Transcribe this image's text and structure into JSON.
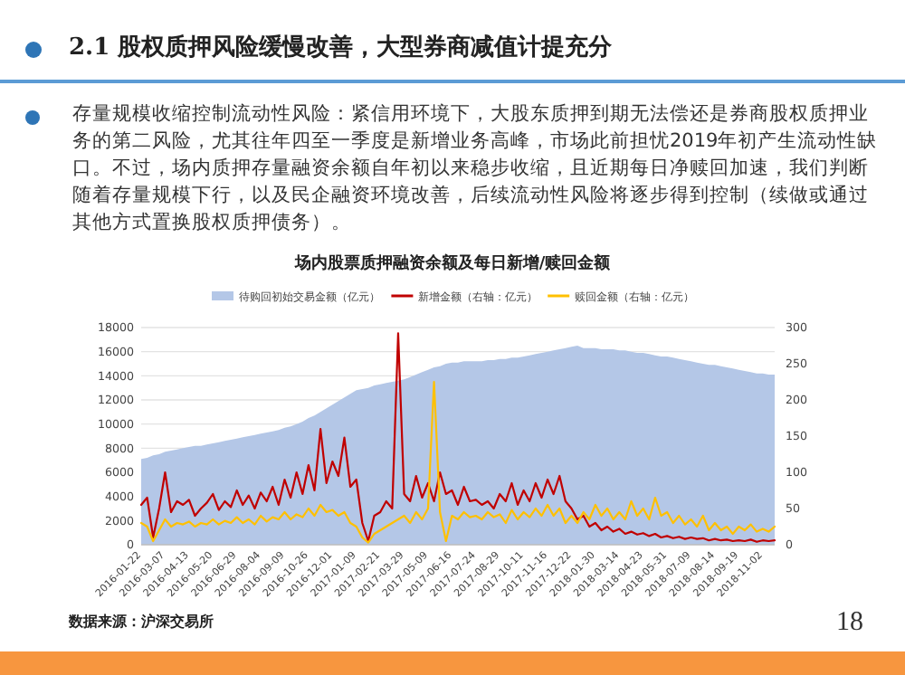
{
  "chart_data": {
    "type": "line",
    "title": "场内股票质押融资余额及每日新增/赎回金额",
    "annotations": [
      "2.1 股权质押风险缓慢改善，大型券商减值计提充分",
      "存量规模收缩控制流动性风险：紧信用环境下，大股东质押到期无法偿还是券商股权质押业务的第二风险，尤其往年四至一季度是新增业务高峰，市场此前担忧2019年初产生流动性缺口。不过，场内质押存量融资余额自年初以来稳步收缩，且近期每日净赎回加速，我们判断随着存量规模下行，以及民企融资环境改善，后续流动性风险将逐步得到控制（续做或通过其他方式置换股权质押债务）。",
      "数据来源：沪深交易所",
      "18"
    ],
    "categories": [
      "2016-01-22",
      null,
      null,
      null,
      "2016-03-07",
      null,
      null,
      null,
      "2016-04-13",
      null,
      null,
      null,
      "2016-05-20",
      null,
      null,
      null,
      "2016-06-29",
      null,
      null,
      null,
      "2016-08-04",
      null,
      null,
      null,
      "2016-09-09",
      null,
      null,
      null,
      "2016-10-26",
      null,
      null,
      null,
      "2016-12-01",
      null,
      null,
      null,
      "2017-01-09",
      null,
      null,
      null,
      "2017-02-21",
      null,
      null,
      null,
      "2017-03-29",
      null,
      null,
      null,
      "2017-05-09",
      null,
      null,
      null,
      "2017-06-16",
      null,
      null,
      null,
      "2017-07-24",
      null,
      null,
      null,
      "2017-08-29",
      null,
      null,
      null,
      "2017-10-11",
      null,
      null,
      null,
      "2017-11-16",
      null,
      null,
      null,
      "2017-12-22",
      null,
      null,
      null,
      "2018-01-30",
      null,
      null,
      null,
      "2018-03-14",
      null,
      null,
      null,
      "2018-04-23",
      null,
      null,
      null,
      "2018-05-31",
      null,
      null,
      null,
      "2018-07-09",
      null,
      null,
      null,
      "2018-08-14",
      null,
      null,
      null,
      "2018-09-19",
      null,
      null,
      null,
      "2018-11-02",
      null,
      null
    ],
    "series": [
      {
        "name": "待购回初始交易金额（亿元）",
        "type": "area",
        "color": "#b4c7e7",
        "values": [
          7100,
          7200,
          7400,
          7500,
          7700,
          7800,
          7900,
          8000,
          8100,
          8200,
          8200,
          8300,
          8400,
          8500,
          8600,
          8700,
          8800,
          8900,
          9000,
          9100,
          9200,
          9300,
          9400,
          9500,
          9700,
          9800,
          10000,
          10200,
          10500,
          10700,
          11000,
          11300,
          11600,
          11900,
          12200,
          12500,
          12800,
          12900,
          13000,
          13200,
          13300,
          13400,
          13500,
          13600,
          13700,
          13900,
          14100,
          14300,
          14500,
          14700,
          14800,
          15000,
          15100,
          15100,
          15200,
          15200,
          15200,
          15200,
          15300,
          15300,
          15400,
          15400,
          15500,
          15500,
          15600,
          15700,
          15800,
          15900,
          16000,
          16100,
          16200,
          16300,
          16400,
          16500,
          16300,
          16300,
          16300,
          16200,
          16200,
          16200,
          16100,
          16100,
          16000,
          15900,
          15900,
          15800,
          15700,
          15600,
          15600,
          15500,
          15400,
          15300,
          15200,
          15100,
          15000,
          14900,
          14900,
          14800,
          14700,
          14600,
          14500,
          14400,
          14300,
          14200,
          14200,
          14100,
          14100
        ]
      },
      {
        "name": "新增金额（右轴：亿元）",
        "axis": "y2",
        "color": "#c00000",
        "values": [
          55,
          65,
          10,
          50,
          100,
          45,
          60,
          55,
          62,
          40,
          50,
          58,
          70,
          48,
          60,
          52,
          75,
          55,
          68,
          50,
          72,
          60,
          80,
          55,
          90,
          65,
          100,
          70,
          110,
          75,
          160,
          85,
          115,
          95,
          148,
          80,
          90,
          30,
          5,
          40,
          45,
          60,
          50,
          292,
          70,
          60,
          95,
          65,
          85,
          60,
          100,
          70,
          75,
          55,
          80,
          60,
          62,
          55,
          60,
          50,
          70,
          60,
          85,
          55,
          75,
          60,
          85,
          65,
          90,
          70,
          95,
          60,
          50,
          35,
          40,
          25,
          30,
          20,
          25,
          18,
          22,
          15,
          18,
          14,
          16,
          12,
          15,
          10,
          12,
          9,
          11,
          8,
          10,
          8,
          9,
          6,
          8,
          6,
          7,
          5,
          6,
          5,
          7,
          4,
          6,
          5,
          6
        ]
      },
      {
        "name": "赎回金额（右轴：亿元）",
        "axis": "y2",
        "color": "#ffc000",
        "values": [
          30,
          25,
          5,
          20,
          35,
          25,
          30,
          28,
          32,
          25,
          30,
          28,
          35,
          28,
          33,
          30,
          38,
          30,
          35,
          28,
          40,
          32,
          38,
          35,
          45,
          35,
          42,
          38,
          50,
          40,
          55,
          45,
          48,
          40,
          45,
          30,
          25,
          10,
          3,
          15,
          20,
          25,
          30,
          35,
          40,
          30,
          45,
          35,
          50,
          225,
          45,
          5,
          40,
          35,
          45,
          38,
          40,
          35,
          45,
          38,
          42,
          30,
          48,
          35,
          45,
          38,
          50,
          40,
          55,
          40,
          50,
          30,
          40,
          30,
          45,
          35,
          55,
          40,
          50,
          35,
          45,
          35,
          60,
          40,
          50,
          35,
          65,
          40,
          45,
          30,
          40,
          28,
          35,
          25,
          40,
          20,
          30,
          20,
          25,
          15,
          25,
          20,
          28,
          18,
          22,
          18,
          25
        ]
      }
    ],
    "ylim": [
      0,
      18000
    ],
    "yticks": [
      0,
      2000,
      4000,
      6000,
      8000,
      10000,
      12000,
      14000,
      16000,
      18000
    ],
    "y2lim": [
      0,
      300
    ],
    "y2ticks": [
      0,
      50,
      100,
      150,
      200,
      250,
      300
    ],
    "grid": "y",
    "legend": "top"
  }
}
